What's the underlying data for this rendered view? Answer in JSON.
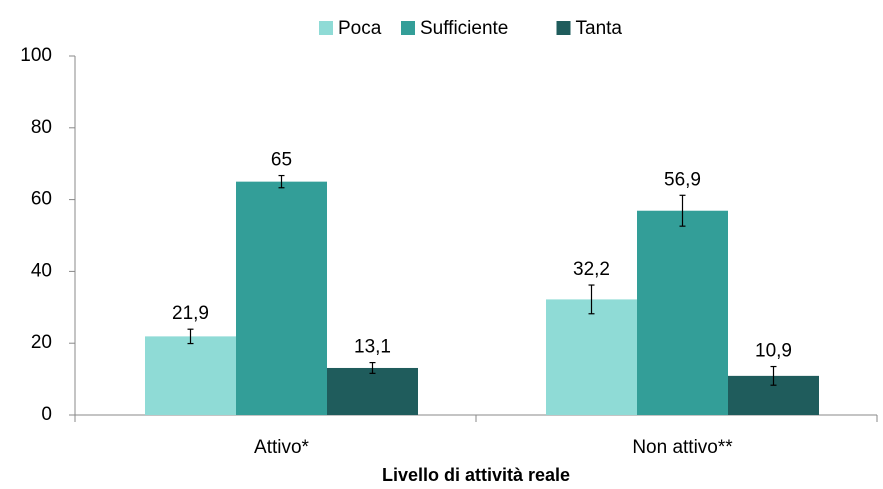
{
  "chart_data": {
    "type": "bar",
    "x_label": "Livello di attività reale",
    "categories": [
      "Attivo*",
      "Non attivo**"
    ],
    "series": [
      {
        "name": "Poca",
        "color": "#8fdbd6",
        "values": [
          21.9,
          32.2
        ],
        "value_labels": [
          "21,9",
          "32,2"
        ],
        "errors": [
          2,
          4
        ]
      },
      {
        "name": "Sufficiente",
        "color": "#339e98",
        "values": [
          65,
          56.9
        ],
        "value_labels": [
          "65",
          "56,9"
        ],
        "errors": [
          1.7,
          4.3
        ]
      },
      {
        "name": "Tanta",
        "color": "#1f5c5c",
        "values": [
          13.1,
          10.9
        ],
        "value_labels": [
          "13,1",
          "10,9"
        ],
        "errors": [
          1.5,
          2.6
        ]
      }
    ],
    "ylim": [
      0,
      100
    ],
    "yticks": [
      0,
      20,
      40,
      60,
      80,
      100
    ],
    "grid": false,
    "legend": "top"
  }
}
